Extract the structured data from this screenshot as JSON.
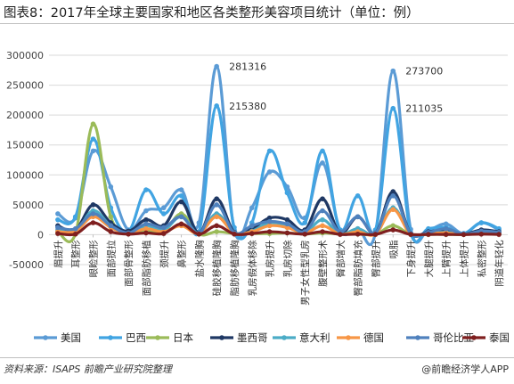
{
  "title": "图表8：2017年全球主要国家和地区各类整形美容项目统计（单位：例）",
  "source": "资料来源：ISAPS 前瞻产业研究院整理",
  "brand": "@前瞻经济学人APP",
  "chart_data": {
    "type": "line",
    "categories": [
      "眉提升",
      "耳整形",
      "眼睑整形",
      "面部提拉",
      "面部骨整形",
      "面部脂肪移植",
      "颈提升",
      "鼻整形",
      "盐水隆胸",
      "硅胶移植隆胸",
      "脂肪移植隆胸",
      "乳房假体移除",
      "乳房提升",
      "乳房切除",
      "男子女性型乳房",
      "腹壁整形术",
      "臀部增大",
      "臀部脂肪填充",
      "臀部提升",
      "吸脂",
      "下身提升",
      "大腿提升",
      "上臂提升",
      "上体提升",
      "私密整形",
      "阴道年轻化"
    ],
    "ylim": [
      -50000,
      300000
    ],
    "yticks": [
      -50000,
      0,
      50000,
      100000,
      150000,
      200000,
      250000,
      300000
    ],
    "grid": true,
    "legend_position": "bottom",
    "series": [
      {
        "name": "美国",
        "color": "#5b9bd5",
        "values": [
          35000,
          28000,
          140000,
          80000,
          8000,
          40000,
          45000,
          75000,
          20000,
          281316,
          8000,
          45000,
          105000,
          80000,
          28000,
          120000,
          8000,
          10000,
          3000,
          273700,
          9000,
          8000,
          18000,
          2000,
          20000,
          8000
        ]
      },
      {
        "name": "巴西",
        "color": "#41a4e2",
        "values": [
          25000,
          30000,
          160000,
          45000,
          6000,
          75000,
          35000,
          65000,
          5000,
          215380,
          12000,
          20000,
          140000,
          70000,
          20000,
          140000,
          8000,
          65000,
          8000,
          211035,
          3000,
          10000,
          12000,
          2000,
          20000,
          10000
        ]
      },
      {
        "name": "日本",
        "color": "#9bbb59",
        "values": [
          5000,
          2000,
          185000,
          30000,
          4000,
          8000,
          5000,
          35000,
          1000,
          5000,
          2000,
          2000,
          2000,
          3000,
          1000,
          3000,
          1000,
          1000,
          500,
          15000,
          500,
          500,
          500,
          300,
          2000,
          1000
        ]
      },
      {
        "name": "墨西哥",
        "color": "#1f3864",
        "values": [
          15000,
          8000,
          50000,
          20000,
          6000,
          25000,
          15000,
          55000,
          3000,
          60000,
          4000,
          10000,
          28000,
          25000,
          8000,
          60000,
          3000,
          30000,
          3000,
          72000,
          2000,
          5000,
          8000,
          1000,
          8000,
          5000
        ]
      },
      {
        "name": "意大利",
        "color": "#4bacc6",
        "values": [
          8000,
          5000,
          40000,
          15000,
          2000,
          15000,
          8000,
          30000,
          2000,
          35000,
          2000,
          6000,
          20000,
          15000,
          4000,
          25000,
          1000,
          10000,
          1000,
          45000,
          1000,
          2000,
          4000,
          500,
          5000,
          2000
        ]
      },
      {
        "name": "德国",
        "color": "#f79646",
        "values": [
          5000,
          6000,
          30000,
          12000,
          2000,
          10000,
          5000,
          15000,
          2000,
          30000,
          3000,
          5000,
          15000,
          12000,
          3000,
          15000,
          1000,
          5000,
          1000,
          42000,
          1000,
          2000,
          3000,
          500,
          4000,
          2000
        ]
      },
      {
        "name": "哥伦比亚",
        "color": "#4f81bd",
        "values": [
          12000,
          10000,
          35000,
          15000,
          3000,
          18000,
          12000,
          30000,
          2000,
          50000,
          3000,
          15000,
          22000,
          18000,
          5000,
          40000,
          5000,
          30000,
          3000,
          65000,
          2000,
          4000,
          10000,
          1000,
          6000,
          4000
        ]
      },
      {
        "name": "泰国",
        "color": "#7f1f1f",
        "values": [
          2000,
          1000,
          20000,
          5000,
          1000,
          3000,
          2000,
          18000,
          1000,
          15000,
          1000,
          2000,
          5000,
          3000,
          1000,
          5000,
          500,
          1000,
          500,
          8000,
          500,
          500,
          500,
          200,
          1000,
          500
        ]
      }
    ],
    "annotations": [
      {
        "category": "硅胶移植隆胸",
        "value": 281316,
        "text": "281316"
      },
      {
        "category": "硅胶移植隆胸",
        "value": 215380,
        "text": "215380"
      },
      {
        "category": "吸脂",
        "value": 273700,
        "text": "273700"
      },
      {
        "category": "吸脂",
        "value": 211035,
        "text": "211035"
      }
    ]
  }
}
